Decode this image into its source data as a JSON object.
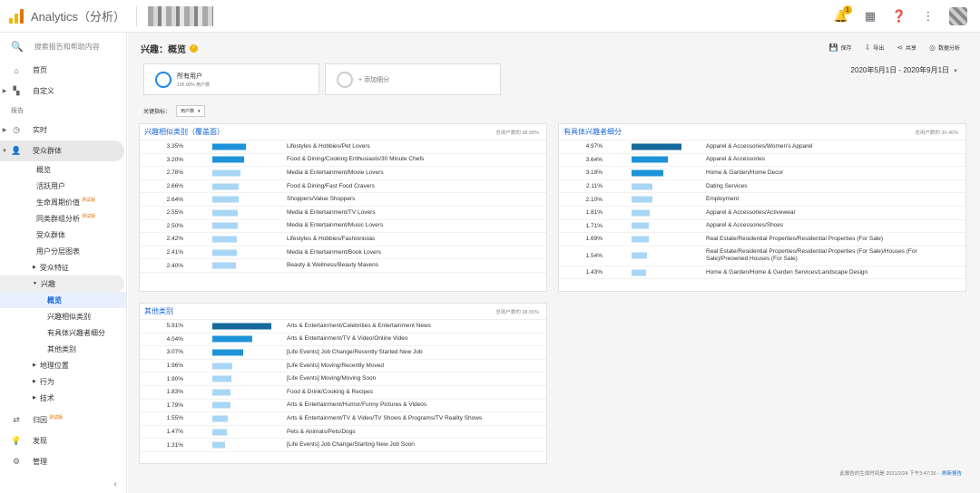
{
  "app": {
    "title": "Analytics（分析）"
  },
  "topbar": {
    "notifications": "1"
  },
  "sidebar": {
    "search_placeholder": "搜索报告和帮助内容",
    "home": "首页",
    "custom": "自定义",
    "reports_section": "报告",
    "realtime": "实时",
    "audience": "受众群体",
    "audience_sub": [
      {
        "label": "概览"
      },
      {
        "label": "活跃用户"
      },
      {
        "label": "生命周期价值",
        "beta": "测试版"
      },
      {
        "label": "同类群组分析",
        "beta": "测试版"
      },
      {
        "label": "受众群体"
      },
      {
        "label": "用户分层图表"
      }
    ],
    "demographics": "受众特征",
    "interests": "兴趣",
    "interests_sub": [
      "概览",
      "兴趣相似类别",
      "有具体兴趣者细分",
      "其他类别"
    ],
    "geo": "地理位置",
    "behavior": "行为",
    "technology": "技术",
    "attribution": "归因",
    "attribution_beta": "测试版",
    "discover": "发现",
    "admin": "管理"
  },
  "header": {
    "title": "兴趣：概览",
    "toolbar": {
      "save": "保存",
      "export": "导出",
      "share": "共享",
      "insights": "数据分析"
    }
  },
  "segments": {
    "active_label": "所有用户",
    "active_sub": "100.00% 用户数",
    "add_label": "+ 添加细分"
  },
  "date_range": "2020年5月1日 - 2020年9月1日",
  "key_metric": {
    "label": "关键指标：",
    "value": "用户数"
  },
  "colors": {
    "dark_bar": "#15699b",
    "mid_bar": "#1f93d9",
    "light_bar": "#a9d6f5"
  },
  "cards": {
    "affinity": {
      "title": "兴趣相似类别（覆盖面）",
      "total": "总用户数的 38.58%",
      "rows": [
        {
          "pct": "3.35%",
          "value": 3.35,
          "label": "Lifestyles & Hobbies/Pet Lovers"
        },
        {
          "pct": "3.20%",
          "value": 3.2,
          "label": "Food & Dining/Cooking Enthusiasts/30 Minute Chefs"
        },
        {
          "pct": "2.78%",
          "value": 2.78,
          "label": "Media & Entertainment/Movie Lovers"
        },
        {
          "pct": "2.66%",
          "value": 2.66,
          "label": "Food & Dining/Fast Food Cravers"
        },
        {
          "pct": "2.64%",
          "value": 2.64,
          "label": "Shoppers/Value Shoppers"
        },
        {
          "pct": "2.55%",
          "value": 2.55,
          "label": "Media & Entertainment/TV Lovers"
        },
        {
          "pct": "2.50%",
          "value": 2.5,
          "label": "Media & Entertainment/Music Lovers"
        },
        {
          "pct": "2.42%",
          "value": 2.42,
          "label": "Lifestyles & Hobbies/Fashionistas"
        },
        {
          "pct": "2.41%",
          "value": 2.41,
          "label": "Media & Entertainment/Book Lovers"
        },
        {
          "pct": "2.40%",
          "value": 2.4,
          "label": "Beauty & Wellness/Beauty Mavens"
        }
      ]
    },
    "inmarket": {
      "title": "有具体兴趣者细分",
      "total": "总用户数的 30.46%",
      "rows": [
        {
          "pct": "4.97%",
          "value": 4.97,
          "label": "Apparel & Accessories/Women's Apparel"
        },
        {
          "pct": "3.64%",
          "value": 3.64,
          "label": "Apparel & Accessories"
        },
        {
          "pct": "3.18%",
          "value": 3.18,
          "label": "Home & Garden/Home Decor"
        },
        {
          "pct": "2.11%",
          "value": 2.11,
          "label": "Dating Services"
        },
        {
          "pct": "2.10%",
          "value": 2.1,
          "label": "Employment"
        },
        {
          "pct": "1.81%",
          "value": 1.81,
          "label": "Apparel & Accessories/Activewear"
        },
        {
          "pct": "1.71%",
          "value": 1.71,
          "label": "Apparel & Accessories/Shoes"
        },
        {
          "pct": "1.69%",
          "value": 1.69,
          "label": "Real Estate/Residential Properties/Residential Properties (For Sale)"
        },
        {
          "pct": "1.54%",
          "value": 1.54,
          "label": "Real Estate/Residential Properties/Residential Properties (For Sale)/Houses (For Sale)/Preowned Houses (For Sale)"
        },
        {
          "pct": "1.43%",
          "value": 1.43,
          "label": "Home & Garden/Home & Garden Services/Landscape Design"
        }
      ]
    },
    "other": {
      "title": "其他类别",
      "total": "总用户数的 38.55%",
      "rows": [
        {
          "pct": "5.91%",
          "value": 5.91,
          "label": "Arts & Entertainment/Celebrities & Entertainment News"
        },
        {
          "pct": "4.04%",
          "value": 4.04,
          "label": "Arts & Entertainment/TV & Video/Online Video"
        },
        {
          "pct": "3.07%",
          "value": 3.07,
          "label": "[Life Events] Job Change/Recently Started New Job"
        },
        {
          "pct": "1.96%",
          "value": 1.96,
          "label": "[Life Events] Moving/Recently Moved"
        },
        {
          "pct": "1.90%",
          "value": 1.9,
          "label": "[Life Events] Moving/Moving Soon"
        },
        {
          "pct": "1.83%",
          "value": 1.83,
          "label": "Food & Drink/Cooking & Recipes"
        },
        {
          "pct": "1.79%",
          "value": 1.79,
          "label": "Arts & Entertainment/Humor/Funny Pictures & Videos"
        },
        {
          "pct": "1.55%",
          "value": 1.55,
          "label": "Arts & Entertainment/TV & Video/TV Shows & Programs/TV Reality Shows"
        },
        {
          "pct": "1.47%",
          "value": 1.47,
          "label": "Pets & Animals/Pets/Dogs"
        },
        {
          "pct": "1.31%",
          "value": 1.31,
          "label": "[Life Events] Job Change/Starting New Job Soon"
        }
      ]
    }
  },
  "footer": {
    "note": "此报告的生成时间是 2021/2/24 下午3:47:26 -",
    "refresh": "刷新报告"
  }
}
